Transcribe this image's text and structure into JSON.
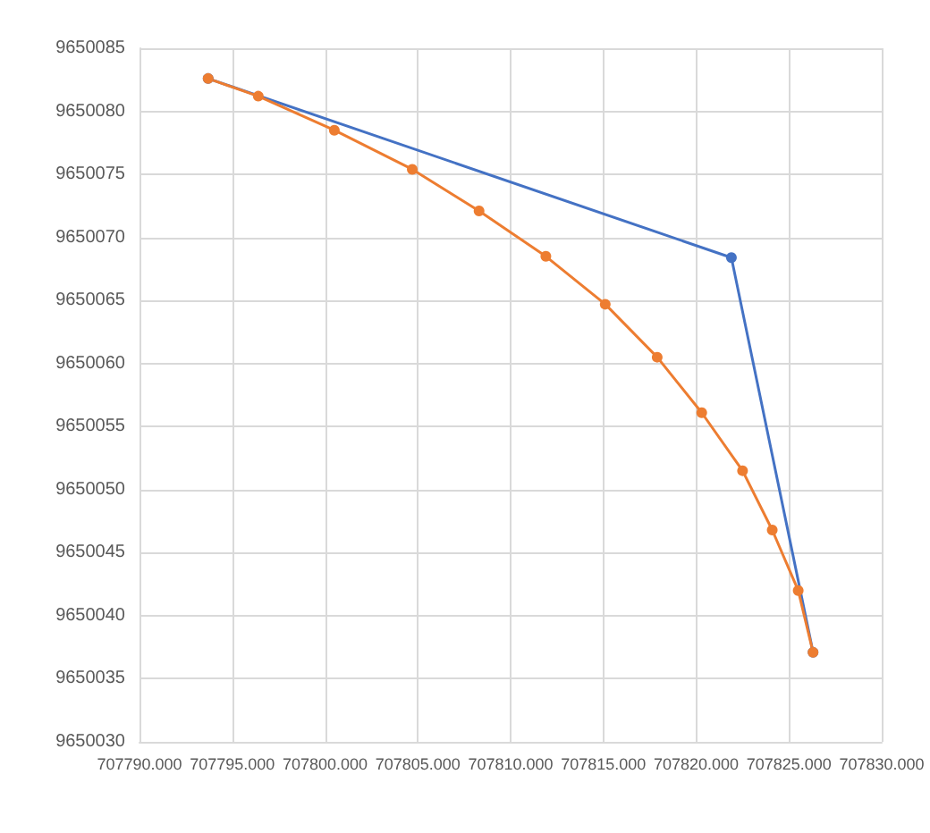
{
  "chart_data": {
    "type": "line",
    "marker": "circle",
    "grid": true,
    "xlim": [
      707790,
      707830
    ],
    "xticks": [
      {
        "value": 707790,
        "label": "707790.000"
      },
      {
        "value": 707795,
        "label": "707795.000"
      },
      {
        "value": 707800,
        "label": "707800.000"
      },
      {
        "value": 707805,
        "label": "707805.000"
      },
      {
        "value": 707810,
        "label": "707810.000"
      },
      {
        "value": 707815,
        "label": "707815.000"
      },
      {
        "value": 707820,
        "label": "707820.000"
      },
      {
        "value": 707825,
        "label": "707825.000"
      },
      {
        "value": 707830,
        "label": "707830.000"
      }
    ],
    "ylim": [
      9650030,
      9650085
    ],
    "yticks": [
      9650030,
      9650035,
      9650040,
      9650045,
      9650050,
      9650055,
      9650060,
      9650065,
      9650070,
      9650075,
      9650080,
      9650085
    ],
    "series": [
      {
        "color": "#4472c4",
        "x": [
          707793.7,
          707821.9,
          707826.3
        ],
        "values": [
          9650082.6,
          9650068.4,
          9650037.1
        ]
      },
      {
        "color": "#ed7d31",
        "x": [
          707793.7,
          707796.4,
          707800.5,
          707804.7,
          707808.3,
          707811.9,
          707815.1,
          707817.9,
          707820.3,
          707822.5,
          707824.1,
          707825.5,
          707826.3
        ],
        "values": [
          9650082.6,
          9650081.2,
          9650078.5,
          9650075.4,
          9650072.1,
          9650068.5,
          9650064.7,
          9650060.5,
          9650056.1,
          9650051.5,
          9650046.8,
          9650042.0,
          9650037.1
        ]
      }
    ]
  }
}
